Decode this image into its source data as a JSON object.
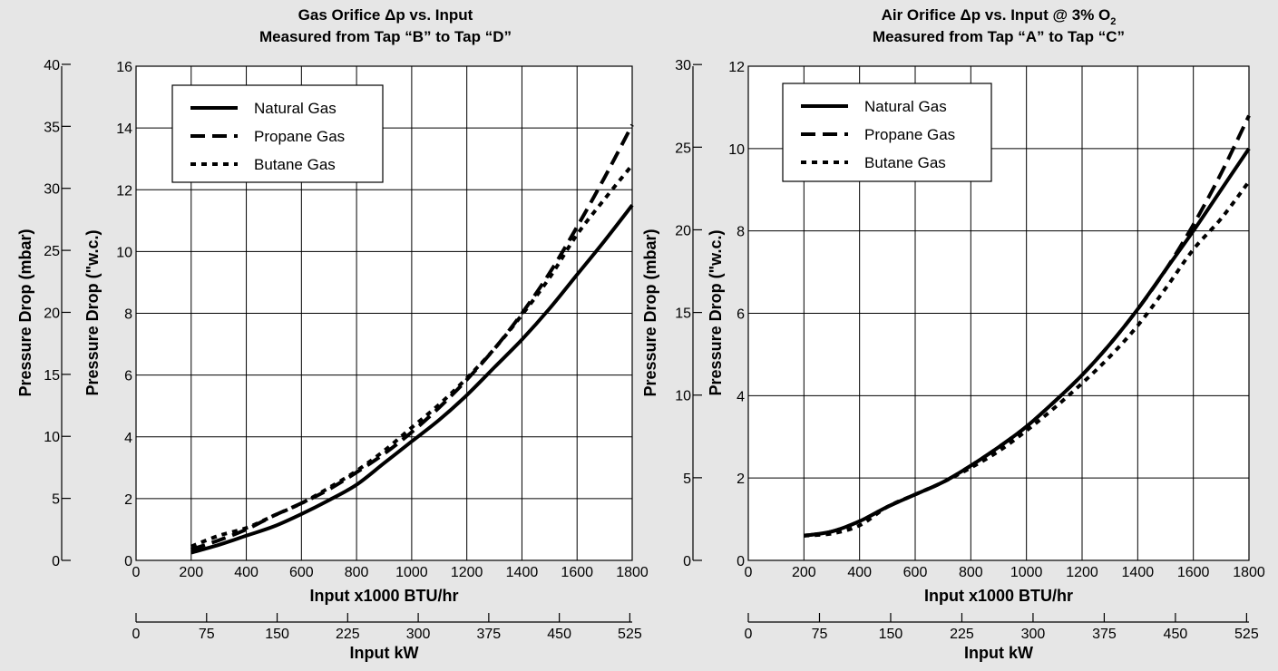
{
  "chart_data": [
    {
      "type": "line",
      "title": "Gas Orifice Δp vs. Input",
      "subtitle": "Measured from Tap “B” to Tap “D”",
      "xlabel": "Input x1000 BTU/hr",
      "x2label": "Input kW",
      "ylabel": "Pressure Drop (\"w.c.)",
      "y2label": "Pressure Drop (mbar)",
      "xlim": [
        0,
        1800
      ],
      "ylim": [
        0,
        16
      ],
      "x2lim": [
        0,
        527.5
      ],
      "y2lim": [
        0,
        39.85
      ],
      "xticks": [
        "0",
        "200",
        "400",
        "600",
        "800",
        "1000",
        "1200",
        "1400",
        "1600",
        "1800"
      ],
      "yticks": [
        "0",
        "2",
        "4",
        "6",
        "8",
        "10",
        "12",
        "14",
        "16"
      ],
      "x2ticks": [
        "0",
        "75",
        "150",
        "225",
        "300",
        "375",
        "450",
        "525"
      ],
      "y2ticks": [
        "0",
        "5",
        "10",
        "15",
        "20",
        "25",
        "30",
        "35",
        "40"
      ],
      "grid": true,
      "legend_position": "top-left",
      "series": [
        {
          "name": "Natural Gas",
          "style": "solid",
          "x": [
            200,
            300,
            400,
            500,
            600,
            700,
            800,
            900,
            1000,
            1100,
            1200,
            1300,
            1400,
            1500,
            1600,
            1700,
            1800
          ],
          "y": [
            0.25,
            0.5,
            0.8,
            1.1,
            1.5,
            1.95,
            2.45,
            3.15,
            3.85,
            4.55,
            5.35,
            6.25,
            7.15,
            8.15,
            9.25,
            10.35,
            11.5
          ]
        },
        {
          "name": "Propane Gas",
          "style": "dashed",
          "x": [
            200,
            300,
            400,
            500,
            600,
            700,
            800,
            900,
            1000,
            1100,
            1200,
            1300,
            1400,
            1500,
            1600,
            1700,
            1800
          ],
          "y": [
            0.35,
            0.65,
            1.0,
            1.45,
            1.85,
            2.3,
            2.85,
            3.45,
            4.15,
            4.95,
            5.85,
            6.85,
            8.0,
            9.3,
            10.8,
            12.4,
            14.1
          ]
        },
        {
          "name": "Butane Gas",
          "style": "dotted",
          "x": [
            200,
            300,
            400,
            500,
            600,
            700,
            800,
            900,
            1000,
            1100,
            1200,
            1300,
            1400,
            1500,
            1600,
            1700,
            1800
          ],
          "y": [
            0.45,
            0.8,
            1.05,
            1.45,
            1.85,
            2.35,
            2.9,
            3.55,
            4.3,
            5.05,
            5.9,
            6.85,
            7.95,
            9.15,
            10.55,
            11.7,
            12.8
          ]
        }
      ]
    },
    {
      "type": "line",
      "title": "Air Orifice Δp vs. Input @ 3% O",
      "title_subscript": "2",
      "subtitle": "Measured from Tap “A” to Tap “C”",
      "xlabel": "Input x1000 BTU/hr",
      "x2label": "Input kW",
      "ylabel": "Pressure Drop (\"w.c.)",
      "y2label": "Pressure Drop (mbar)",
      "xlim": [
        0,
        1800
      ],
      "ylim": [
        0,
        12
      ],
      "x2lim": [
        0,
        527.5
      ],
      "y2lim": [
        0,
        29.9
      ],
      "xticks": [
        "0",
        "200",
        "400",
        "600",
        "800",
        "1000",
        "1200",
        "1400",
        "1600",
        "1800"
      ],
      "yticks": [
        "0",
        "2",
        "4",
        "6",
        "8",
        "10",
        "12"
      ],
      "x2ticks": [
        "0",
        "75",
        "150",
        "225",
        "300",
        "375",
        "450",
        "525"
      ],
      "y2ticks": [
        "0",
        "5",
        "10",
        "15",
        "20",
        "25",
        "30"
      ],
      "grid": true,
      "legend_position": "top-left",
      "series": [
        {
          "name": "Natural Gas",
          "style": "solid",
          "x": [
            200,
            300,
            400,
            500,
            600,
            700,
            800,
            900,
            1000,
            1100,
            1200,
            1300,
            1400,
            1500,
            1600,
            1700,
            1800
          ],
          "y": [
            0.6,
            0.7,
            0.95,
            1.3,
            1.6,
            1.9,
            2.3,
            2.75,
            3.25,
            3.85,
            4.5,
            5.25,
            6.1,
            7.05,
            8.0,
            9.0,
            10.0
          ]
        },
        {
          "name": "Propane Gas",
          "style": "dashed",
          "x": [
            200,
            300,
            400,
            500,
            600,
            700,
            800,
            900,
            1000,
            1100,
            1200,
            1300,
            1400,
            1500,
            1600,
            1700,
            1800
          ],
          "y": [
            0.6,
            0.7,
            0.95,
            1.3,
            1.6,
            1.9,
            2.3,
            2.75,
            3.25,
            3.85,
            4.5,
            5.25,
            6.1,
            7.05,
            8.15,
            9.4,
            10.8
          ]
        },
        {
          "name": "Butane Gas",
          "style": "dotted",
          "x": [
            200,
            300,
            400,
            500,
            600,
            700,
            800,
            900,
            1000,
            1100,
            1200,
            1300,
            1400,
            1500,
            1600,
            1700,
            1800
          ],
          "y": [
            0.6,
            0.65,
            0.85,
            1.3,
            1.6,
            1.9,
            2.25,
            2.65,
            3.15,
            3.7,
            4.3,
            4.95,
            5.7,
            6.6,
            7.55,
            8.3,
            9.2
          ]
        }
      ]
    }
  ]
}
